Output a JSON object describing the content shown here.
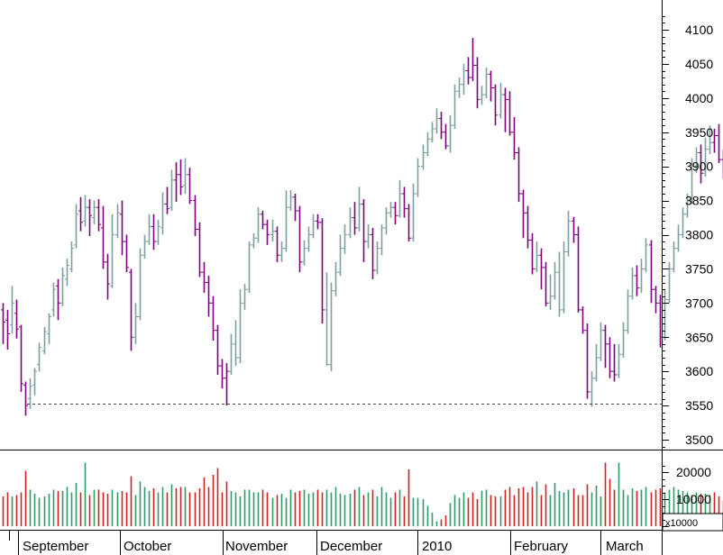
{
  "chart_data": {
    "type": "bar",
    "subtype": "ohlc-with-volume",
    "price_axis": {
      "ylim": [
        3470,
        4130
      ],
      "ticks": [
        3500,
        3550,
        3600,
        3650,
        3700,
        3750,
        3800,
        3850,
        3900,
        3950,
        4000,
        4050,
        4100
      ],
      "tick_labels": [
        "3500",
        "3550",
        "3600",
        "3650",
        "3700",
        "3750",
        "3800",
        "3850",
        "3900",
        "3950",
        "4000",
        "4050",
        "4100"
      ],
      "position": "right"
    },
    "volume_axis": {
      "ylim": [
        0,
        24000
      ],
      "ticks": [
        10000,
        20000
      ],
      "tick_labels": [
        "10000",
        "20000"
      ],
      "unit_label": "x10000"
    },
    "x_axis": {
      "months": [
        "September",
        "October",
        "November",
        "December",
        "2010",
        "February",
        "March"
      ]
    },
    "support_line": {
      "value": 3553,
      "style": "dashed"
    },
    "colors": {
      "up": "#7f9f9f",
      "down": "#7f007f",
      "vol_up": "#2e9a6a",
      "vol_down": "#cc2222",
      "axis": "#000000",
      "support": "#444444"
    },
    "bars": [
      [
        3690,
        3672,
        3700,
        3640,
        0,
        11000
      ],
      [
        3675,
        3655,
        3690,
        3632,
        0,
        12500
      ],
      [
        3668,
        3700,
        3725,
        3655,
        1,
        11000
      ],
      [
        3685,
        3662,
        3705,
        3648,
        0,
        11500
      ],
      [
        3665,
        3582,
        3668,
        3570,
        0,
        12500
      ],
      [
        3580,
        3550,
        3585,
        3535,
        0,
        20500
      ],
      [
        3560,
        3578,
        3590,
        3545,
        1,
        13500
      ],
      [
        3580,
        3600,
        3605,
        3565,
        1,
        12000
      ],
      [
        3610,
        3635,
        3642,
        3600,
        1,
        10500
      ],
      [
        3630,
        3658,
        3665,
        3625,
        1,
        11000
      ],
      [
        3655,
        3680,
        3685,
        3640,
        1,
        12000
      ],
      [
        3690,
        3720,
        3730,
        3680,
        1,
        13500
      ],
      [
        3725,
        3700,
        3735,
        3675,
        0,
        13000
      ],
      [
        3700,
        3740,
        3752,
        3695,
        1,
        13000
      ],
      [
        3735,
        3755,
        3765,
        3725,
        1,
        14500
      ],
      [
        3750,
        3780,
        3790,
        3745,
        1,
        12500
      ],
      [
        3785,
        3830,
        3845,
        3780,
        1,
        16000
      ],
      [
        3835,
        3818,
        3855,
        3805,
        0,
        12500
      ],
      [
        3820,
        3840,
        3858,
        3812,
        1,
        23500
      ],
      [
        3840,
        3828,
        3852,
        3798,
        0,
        11500
      ],
      [
        3825,
        3840,
        3850,
        3815,
        1,
        13500
      ],
      [
        3840,
        3815,
        3852,
        3805,
        0,
        13500
      ],
      [
        3810,
        3760,
        3842,
        3750,
        0,
        12500
      ],
      [
        3760,
        3728,
        3772,
        3705,
        0,
        12000
      ],
      [
        3725,
        3800,
        3830,
        3722,
        1,
        13500
      ],
      [
        3800,
        3832,
        3845,
        3795,
        1,
        12500
      ],
      [
        3830,
        3790,
        3850,
        3770,
        0,
        13000
      ],
      [
        3790,
        3752,
        3800,
        3745,
        0,
        12500
      ],
      [
        3745,
        3650,
        3750,
        3630,
        0,
        18500
      ],
      [
        3650,
        3680,
        3700,
        3640,
        1,
        11500
      ],
      [
        3680,
        3770,
        3780,
        3675,
        1,
        16500
      ],
      [
        3770,
        3790,
        3800,
        3765,
        1,
        14500
      ],
      [
        3790,
        3812,
        3830,
        3785,
        1,
        13000
      ],
      [
        3812,
        3790,
        3830,
        3778,
        0,
        14000
      ],
      [
        3790,
        3812,
        3822,
        3785,
        1,
        12500
      ],
      [
        3810,
        3845,
        3862,
        3800,
        1,
        14500
      ],
      [
        3845,
        3838,
        3870,
        3830,
        0,
        12500
      ],
      [
        3840,
        3880,
        3895,
        3835,
        1,
        15500
      ],
      [
        3880,
        3888,
        3906,
        3848,
        0,
        14000
      ],
      [
        3888,
        3870,
        3910,
        3858,
        0,
        14500
      ],
      [
        3872,
        3888,
        3912,
        3860,
        1,
        14500
      ],
      [
        3888,
        3850,
        3898,
        3845,
        0,
        12500
      ],
      [
        3850,
        3808,
        3858,
        3798,
        0,
        12500
      ],
      [
        3808,
        3745,
        3818,
        3738,
        0,
        14000
      ],
      [
        3745,
        3730,
        3760,
        3715,
        0,
        18000
      ],
      [
        3730,
        3700,
        3740,
        3680,
        0,
        14500
      ],
      [
        3700,
        3660,
        3710,
        3645,
        0,
        19000
      ],
      [
        3660,
        3608,
        3668,
        3595,
        0,
        21500
      ],
      [
        3608,
        3590,
        3618,
        3575,
        0,
        12500
      ],
      [
        3590,
        3600,
        3612,
        3550,
        0,
        16500
      ],
      [
        3600,
        3640,
        3655,
        3595,
        1,
        13000
      ],
      [
        3640,
        3620,
        3675,
        3608,
        1,
        12500
      ],
      [
        3620,
        3700,
        3720,
        3612,
        1,
        11000
      ],
      [
        3700,
        3720,
        3728,
        3690,
        1,
        13500
      ],
      [
        3720,
        3785,
        3790,
        3715,
        1,
        13500
      ],
      [
        3785,
        3795,
        3802,
        3780,
        1,
        12500
      ],
      [
        3795,
        3830,
        3840,
        3788,
        1,
        12500
      ],
      [
        3830,
        3815,
        3835,
        3808,
        0,
        13500
      ],
      [
        3815,
        3800,
        3822,
        3785,
        0,
        12500
      ],
      [
        3800,
        3805,
        3822,
        3790,
        1,
        10500
      ],
      [
        3805,
        3770,
        3812,
        3760,
        0,
        11500
      ],
      [
        3770,
        3780,
        3790,
        3760,
        1,
        12000
      ],
      [
        3780,
        3840,
        3865,
        3775,
        1,
        10500
      ],
      [
        3840,
        3855,
        3865,
        3835,
        1,
        13500
      ],
      [
        3855,
        3835,
        3860,
        3820,
        0,
        12500
      ],
      [
        3835,
        3760,
        3842,
        3745,
        0,
        13000
      ],
      [
        3760,
        3780,
        3792,
        3755,
        1,
        13500
      ],
      [
        3780,
        3800,
        3812,
        3775,
        1,
        12000
      ],
      [
        3800,
        3820,
        3830,
        3795,
        1,
        12500
      ],
      [
        3820,
        3818,
        3830,
        3808,
        0,
        13500
      ],
      [
        3818,
        3690,
        3824,
        3670,
        0,
        12500
      ],
      [
        3690,
        3610,
        3745,
        3608,
        1,
        13500
      ],
      [
        3610,
        3718,
        3730,
        3600,
        1,
        12500
      ],
      [
        3718,
        3745,
        3760,
        3710,
        1,
        14500
      ],
      [
        3745,
        3780,
        3800,
        3740,
        1,
        12000
      ],
      [
        3780,
        3800,
        3815,
        3772,
        1,
        11500
      ],
      [
        3800,
        3825,
        3840,
        3795,
        1,
        12000
      ],
      [
        3825,
        3810,
        3848,
        3800,
        0,
        13500
      ],
      [
        3810,
        3845,
        3870,
        3805,
        1,
        14500
      ],
      [
        3845,
        3790,
        3852,
        3760,
        0,
        11500
      ],
      [
        3790,
        3800,
        3815,
        3780,
        1,
        12500
      ],
      [
        3800,
        3748,
        3810,
        3735,
        0,
        13500
      ],
      [
        3748,
        3780,
        3790,
        3742,
        1,
        11000
      ],
      [
        3780,
        3810,
        3815,
        3770,
        1,
        14500
      ],
      [
        3810,
        3832,
        3840,
        3800,
        1,
        12500
      ],
      [
        3832,
        3840,
        3848,
        3825,
        1,
        10500
      ],
      [
        3840,
        3828,
        3848,
        3815,
        0,
        12500
      ],
      [
        3828,
        3860,
        3880,
        3825,
        1,
        13500
      ],
      [
        3860,
        3838,
        3870,
        3825,
        0,
        11000
      ],
      [
        3838,
        3795,
        3845,
        3790,
        0,
        21000
      ],
      [
        3795,
        3860,
        3875,
        3790,
        1,
        10500
      ],
      [
        3860,
        3900,
        3912,
        3855,
        1,
        10500
      ],
      [
        3900,
        3920,
        3932,
        3895,
        1,
        10000
      ],
      [
        3920,
        3940,
        3950,
        3915,
        1,
        7500
      ],
      [
        3940,
        3955,
        3965,
        3935,
        1,
        5000
      ],
      [
        3955,
        3970,
        3985,
        3948,
        1,
        1800
      ],
      [
        3970,
        3950,
        3980,
        3940,
        0,
        2500
      ],
      [
        3950,
        3930,
        3962,
        3925,
        0,
        4000
      ],
      [
        3930,
        3960,
        3975,
        3920,
        1,
        8500
      ],
      [
        3960,
        4010,
        4020,
        3955,
        1,
        11500
      ],
      [
        4010,
        4020,
        4030,
        4000,
        1,
        10500
      ],
      [
        4020,
        4040,
        4050,
        4005,
        1,
        12500
      ],
      [
        4040,
        4030,
        4060,
        4020,
        0,
        10500
      ],
      [
        4030,
        4048,
        4088,
        4025,
        0,
        12500
      ],
      [
        4048,
        3998,
        4060,
        3985,
        0,
        10000
      ],
      [
        3998,
        4005,
        4018,
        3990,
        1,
        13000
      ],
      [
        4005,
        4035,
        4045,
        4000,
        1,
        13500
      ],
      [
        4035,
        4015,
        4040,
        3995,
        0,
        11500
      ],
      [
        4015,
        3975,
        4020,
        3960,
        0,
        11000
      ],
      [
        3975,
        4005,
        4022,
        3970,
        1,
        11000
      ],
      [
        4005,
        3998,
        4015,
        3950,
        0,
        13500
      ],
      [
        3998,
        3950,
        4010,
        3945,
        0,
        14500
      ],
      [
        3950,
        3920,
        3972,
        3910,
        0,
        11500
      ],
      [
        3920,
        3860,
        3928,
        3848,
        0,
        14000
      ],
      [
        3860,
        3832,
        3866,
        3795,
        0,
        14500
      ],
      [
        3832,
        3792,
        3842,
        3780,
        0,
        12500
      ],
      [
        3792,
        3750,
        3802,
        3742,
        0,
        14500
      ],
      [
        3750,
        3770,
        3790,
        3745,
        1,
        16500
      ],
      [
        3770,
        3752,
        3780,
        3720,
        0,
        11500
      ],
      [
        3752,
        3700,
        3760,
        3695,
        0,
        15500
      ],
      [
        3700,
        3710,
        3742,
        3690,
        1,
        11500
      ],
      [
        3710,
        3745,
        3760,
        3705,
        1,
        16000
      ],
      [
        3745,
        3690,
        3775,
        3680,
        1,
        13000
      ],
      [
        3690,
        3775,
        3790,
        3685,
        1,
        12500
      ],
      [
        3775,
        3820,
        3835,
        3768,
        1,
        13500
      ],
      [
        3820,
        3800,
        3826,
        3788,
        0,
        14000
      ],
      [
        3800,
        3690,
        3812,
        3686,
        0,
        11500
      ],
      [
        3690,
        3660,
        3695,
        3655,
        0,
        11500
      ],
      [
        3660,
        3570,
        3670,
        3560,
        0,
        15500
      ],
      [
        3570,
        3590,
        3600,
        3548,
        1,
        12500
      ],
      [
        3590,
        3620,
        3640,
        3585,
        1,
        15000
      ],
      [
        3620,
        3660,
        3672,
        3615,
        1,
        11000
      ],
      [
        3660,
        3640,
        3668,
        3605,
        0,
        23500
      ],
      [
        3640,
        3600,
        3650,
        3590,
        0,
        17500
      ],
      [
        3600,
        3595,
        3640,
        3585,
        0,
        13500
      ],
      [
        3595,
        3625,
        3640,
        3590,
        1,
        23500
      ],
      [
        3625,
        3660,
        3672,
        3620,
        1,
        13500
      ],
      [
        3660,
        3710,
        3720,
        3655,
        1,
        11500
      ],
      [
        3710,
        3740,
        3752,
        3705,
        1,
        14000
      ],
      [
        3740,
        3722,
        3755,
        3710,
        0,
        13000
      ],
      [
        3722,
        3750,
        3765,
        3715,
        1,
        13500
      ],
      [
        3750,
        3785,
        3795,
        3745,
        1,
        14500
      ],
      [
        3785,
        3720,
        3792,
        3700,
        0,
        12500
      ],
      [
        3720,
        3700,
        3725,
        3685,
        0,
        13500
      ],
      [
        3700,
        3650,
        3712,
        3635,
        0,
        14000
      ],
      [
        3650,
        3705,
        3720,
        3645,
        1,
        12500
      ],
      [
        3705,
        3750,
        3760,
        3700,
        1,
        13500
      ],
      [
        3750,
        3780,
        3790,
        3745,
        1,
        14500
      ],
      [
        3780,
        3800,
        3815,
        3775,
        1,
        13500
      ],
      [
        3800,
        3830,
        3840,
        3795,
        1,
        13000
      ],
      [
        3830,
        3850,
        3860,
        3825,
        1,
        12500
      ],
      [
        3850,
        3900,
        3912,
        3845,
        1,
        11500
      ],
      [
        3900,
        3920,
        3928,
        3890,
        1,
        12500
      ],
      [
        3920,
        3890,
        3932,
        3875,
        0,
        12000
      ],
      [
        3890,
        3925,
        3942,
        3885,
        1,
        12000
      ],
      [
        3925,
        3935,
        3960,
        3918,
        1,
        11500
      ],
      [
        3935,
        3945,
        3955,
        3920,
        0,
        12500
      ],
      [
        3945,
        3910,
        3962,
        3905,
        0,
        11000
      ],
      [
        3910,
        3890,
        3925,
        3882,
        0,
        9500
      ]
    ]
  }
}
